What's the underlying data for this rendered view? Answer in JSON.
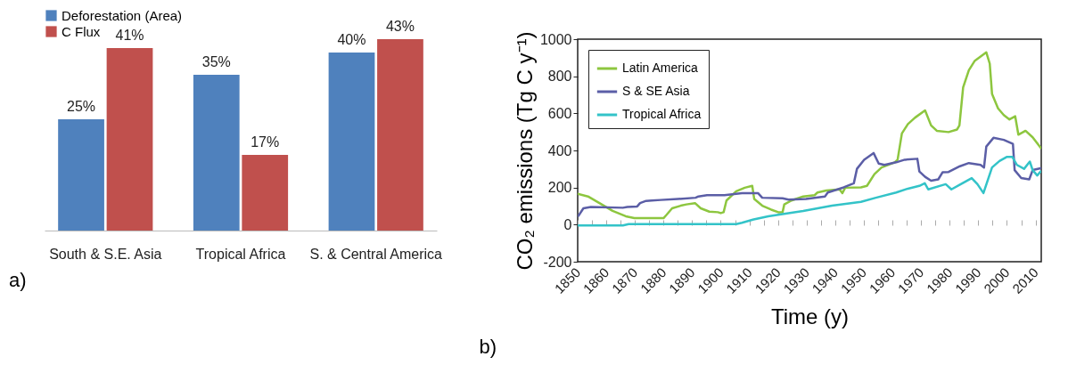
{
  "chart_data": [
    {
      "type": "bar",
      "categories": [
        "South & S.E. Asia",
        "Tropical Africa",
        "S. & Central America"
      ],
      "series": [
        {
          "name": "Deforestation (Area)",
          "color": "#4f81bd",
          "values": [
            25,
            35,
            40
          ],
          "value_labels": [
            "25%",
            "35%",
            "40%"
          ]
        },
        {
          "name": "C Flux",
          "color": "#c0504d",
          "values": [
            41,
            17,
            43
          ],
          "value_labels": [
            "41%",
            "17%",
            "43%"
          ]
        }
      ],
      "tick_labels": "x",
      "legend": "top",
      "annotations": [
        "a)"
      ]
    },
    {
      "type": "line",
      "xlabel": "Time (y)",
      "ylabel": "CO₂ emissions (Tg C y⁻¹)",
      "series": [
        {
          "name": "Latin America",
          "color": "#8dc63f",
          "x": [
            1850,
            1853.6,
            1857.6,
            1862.2,
            1866.8,
            1869.8,
            1880,
            1881,
            1883,
            1886,
            1888,
            1891,
            1893,
            1896,
            1899,
            1900,
            1901,
            1902,
            1905.4,
            1908.4,
            1911,
            1911.7,
            1914.5,
            1917.6,
            1920.1,
            1921.6,
            1922.2,
            1924.7,
            1928.8,
            1932.8,
            1933.8,
            1936.9,
            1941.5,
            1942.5,
            1943.5,
            1949,
            1951.1,
            1953.7,
            1956.2,
            1960.8,
            1961.8,
            1963.3,
            1965.4,
            1967.9,
            1971.4,
            1973.5,
            1975.5,
            1979.6,
            1982.6,
            1983.4,
            1984.7,
            1986.7,
            1988.7,
            1992.8,
            1994,
            1994.8,
            1996.9,
            1998.9,
            2000.9,
            2002.9,
            2004,
            2006.5,
            2009,
            2011.8
          ],
          "values": [
            166,
            152,
            116,
            74,
            45,
            35,
            35,
            52,
            88,
            102,
            109,
            116,
            88,
            70,
            67,
            62,
            67,
            130,
            180,
            199,
            209,
            138,
            102,
            81,
            67,
            67,
            109,
            130,
            152,
            159,
            173,
            184,
            190,
            170,
            199,
            201,
            209,
            272,
            308,
            336,
            350,
            492,
            542,
            577,
            616,
            535,
            506,
            499,
            513,
            535,
            740,
            833,
            882,
            929,
            868,
            705,
            627,
            591,
            567,
            584,
            485,
            506,
            471,
            414
          ]
        },
        {
          "name": "S & SE Asia",
          "color": "#5b5ea6",
          "x": [
            1850.3,
            1852,
            1854.6,
            1865.8,
            1867.3,
            1870.8,
            1871.8,
            1873.9,
            1875.9,
            1879,
            1885,
            1891.2,
            1892.2,
            1895.2,
            1901.3,
            1907.4,
            1913,
            1914.5,
            1921.6,
            1923.7,
            1929.8,
            1936.4,
            1937.4,
            1943,
            1946.5,
            1947.6,
            1950.1,
            1953.4,
            1955.2,
            1957.2,
            1961.3,
            1964.3,
            1968.7,
            1969.4,
            1971.4,
            1973.5,
            1976,
            1977.5,
            1979.6,
            1983.6,
            1986.7,
            1990.8,
            1992,
            1992.8,
            1995.3,
            1998.9,
            2002.1,
            2002.7,
            2005,
            2007.8,
            2009,
            2011.8
          ],
          "values": [
            48,
            88,
            95,
            91,
            95,
            98,
            116,
            128,
            130,
            133,
            138,
            145,
            152,
            159,
            159,
            170,
            170,
            145,
            142,
            135,
            138,
            152,
            173,
            201,
            223,
            301,
            350,
            386,
            329,
            322,
            336,
            350,
            355,
            287,
            258,
            237,
            244,
            282,
            284,
            315,
            332,
            322,
            308,
            421,
            468,
            457,
            435,
            294,
            251,
            244,
            294,
            304
          ]
        },
        {
          "name": "Tropical Africa",
          "color": "#33c3c8",
          "x": [
            1850,
            1865.8,
            1867.8,
            1905.4,
            1907.4,
            1911.5,
            1916.6,
            1921.6,
            1928.8,
            1938.9,
            1949,
            1954.2,
            1961.3,
            1965.4,
            1969.4,
            1971.3,
            1972.5,
            1978.6,
            1980.6,
            1983.6,
            1987.7,
            1989.7,
            1991.8,
            1994.8,
            1997.4,
            1999.9,
            2001.9,
            2003.5,
            2006,
            2008,
            2009,
            2010.6,
            2011.8
          ],
          "values": [
            -4,
            -4,
            3,
            3,
            10,
            28,
            45,
            57,
            74,
            102,
            123,
            145,
            173,
            194,
            209,
            223,
            190,
            218,
            190,
            216,
            251,
            218,
            170,
            308,
            343,
            365,
            365,
            322,
            301,
            340,
            294,
            265,
            287
          ]
        }
      ],
      "xlim": [
        1850,
        2012
      ],
      "xticks": [
        1850,
        {
          "value": 1855,
          "label": null
        },
        1860,
        {
          "value": 1865,
          "label": null
        },
        1870,
        {
          "value": 1875,
          "label": null
        },
        1880,
        {
          "value": 1885,
          "label": null
        },
        1890,
        {
          "value": 1895,
          "label": null
        },
        1900,
        {
          "value": 1905,
          "label": null
        },
        1910,
        {
          "value": 1915,
          "label": null
        },
        1920,
        {
          "value": 1925,
          "label": null
        },
        1930,
        {
          "value": 1935,
          "label": null
        },
        1940,
        {
          "value": 1945,
          "label": null
        },
        1950,
        {
          "value": 1955,
          "label": null
        },
        1960,
        {
          "value": 1965,
          "label": null
        },
        1970,
        {
          "value": 1975,
          "label": null
        },
        1980,
        {
          "value": 1985,
          "label": null
        },
        1990,
        {
          "value": 1995,
          "label": null
        },
        2000,
        {
          "value": 2005,
          "label": null
        },
        2010
      ],
      "ylim": [
        -200,
        1000
      ],
      "yticks": [
        -200,
        0,
        200,
        400,
        600,
        800,
        1000
      ],
      "legend": "top left",
      "grid": false,
      "marker": "none",
      "line_style": "solid",
      "annotations": [
        "b)"
      ]
    }
  ]
}
